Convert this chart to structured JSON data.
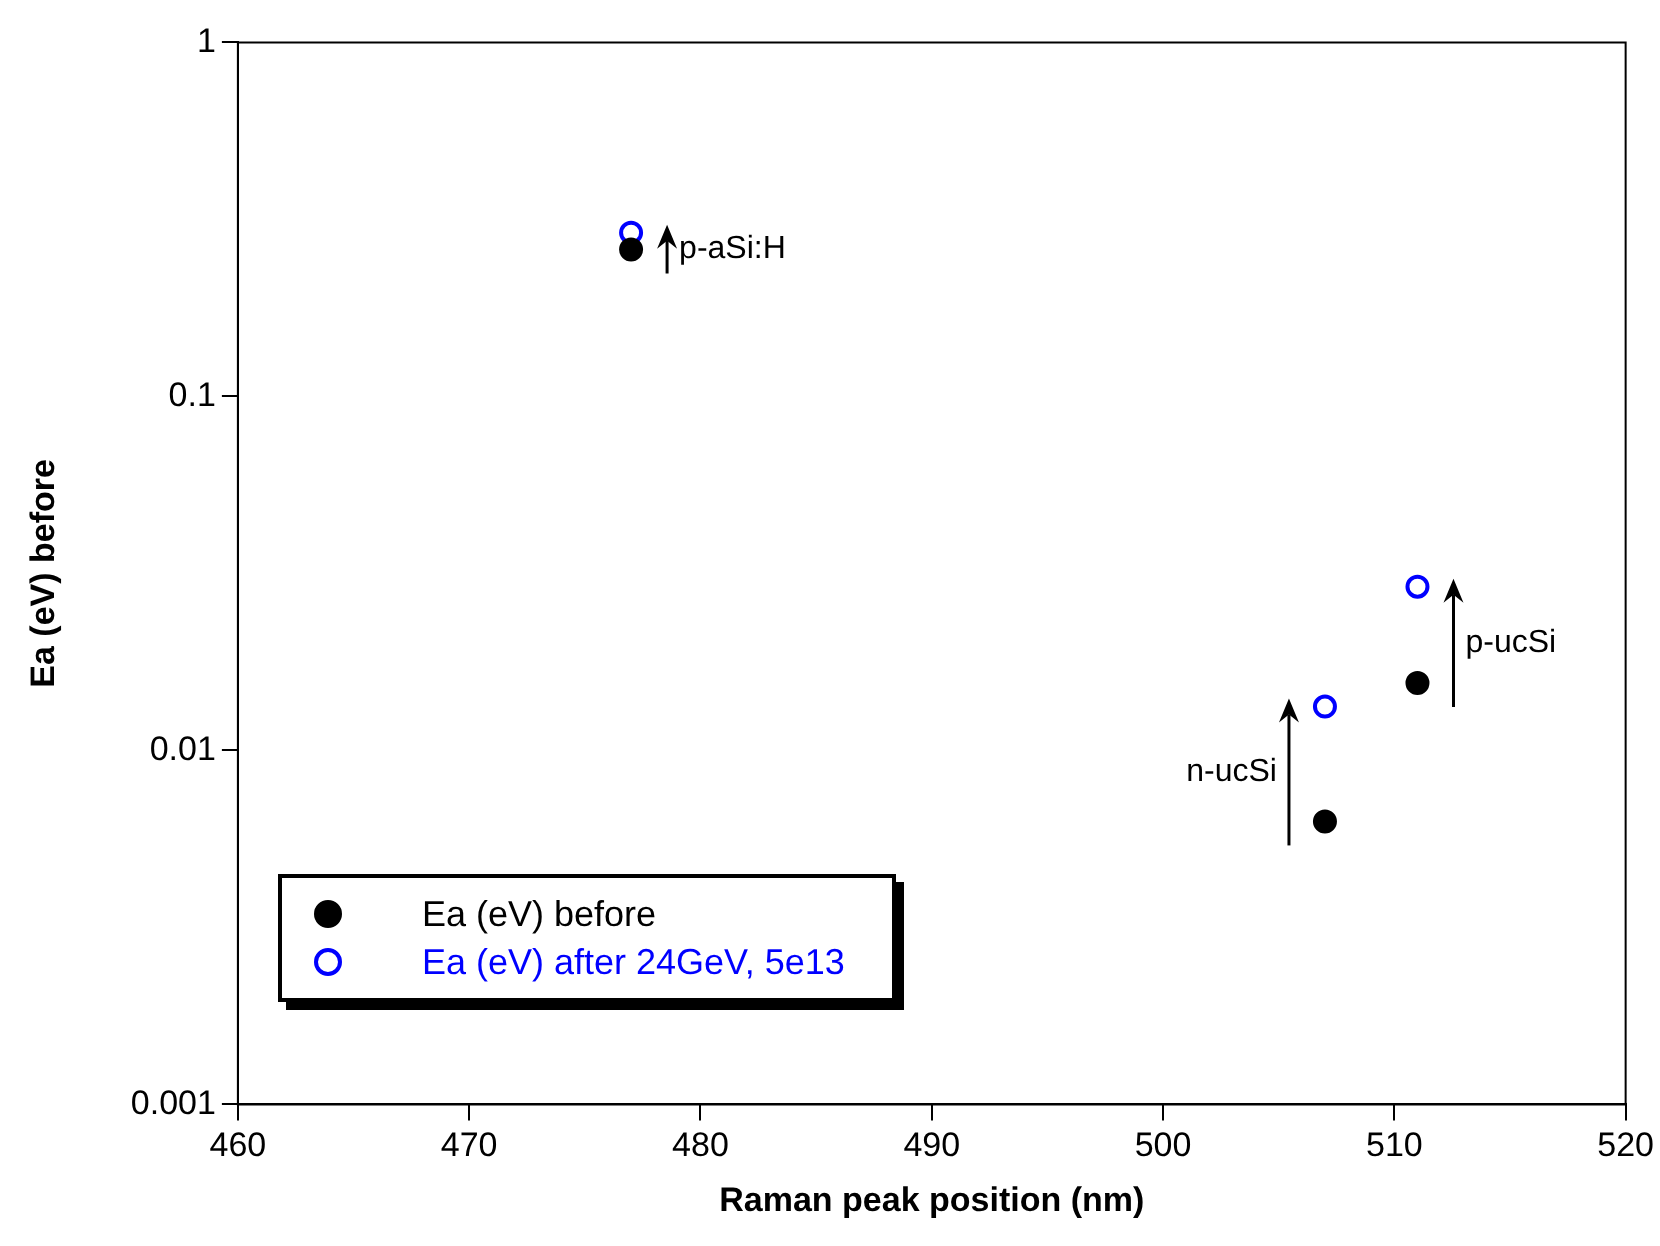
{
  "chart_data": {
    "type": "scatter",
    "xlabel": "Raman peak position (nm)",
    "ylabel": "Ea (eV) before",
    "x": [
      477,
      507,
      511
    ],
    "series": [
      {
        "name": "Ea (eV) before",
        "color": "#000000",
        "values": [
          0.26,
          0.0063,
          0.0155
        ]
      },
      {
        "name": "Ea (eV) after 24GeV, 5e13",
        "color": "#0000ff",
        "values": [
          0.29,
          0.0133,
          0.029
        ]
      }
    ],
    "xlim": [
      460,
      520
    ],
    "xticks": [
      460,
      470,
      480,
      490,
      500,
      510,
      520
    ],
    "ylim": [
      0.001,
      1
    ],
    "yticks": [
      0.001,
      0.01,
      0.1,
      1
    ],
    "log": "y",
    "grid": false,
    "legend": "bottom left",
    "marker": "circle",
    "annotations": [
      {
        "text": "p-aSi:H",
        "x": 477,
        "y": 0.26
      },
      {
        "text": "n-ucSi",
        "x": 507,
        "y": 0.0063
      },
      {
        "text": "p-ucSi",
        "x": 511,
        "y": 0.0155
      }
    ]
  }
}
